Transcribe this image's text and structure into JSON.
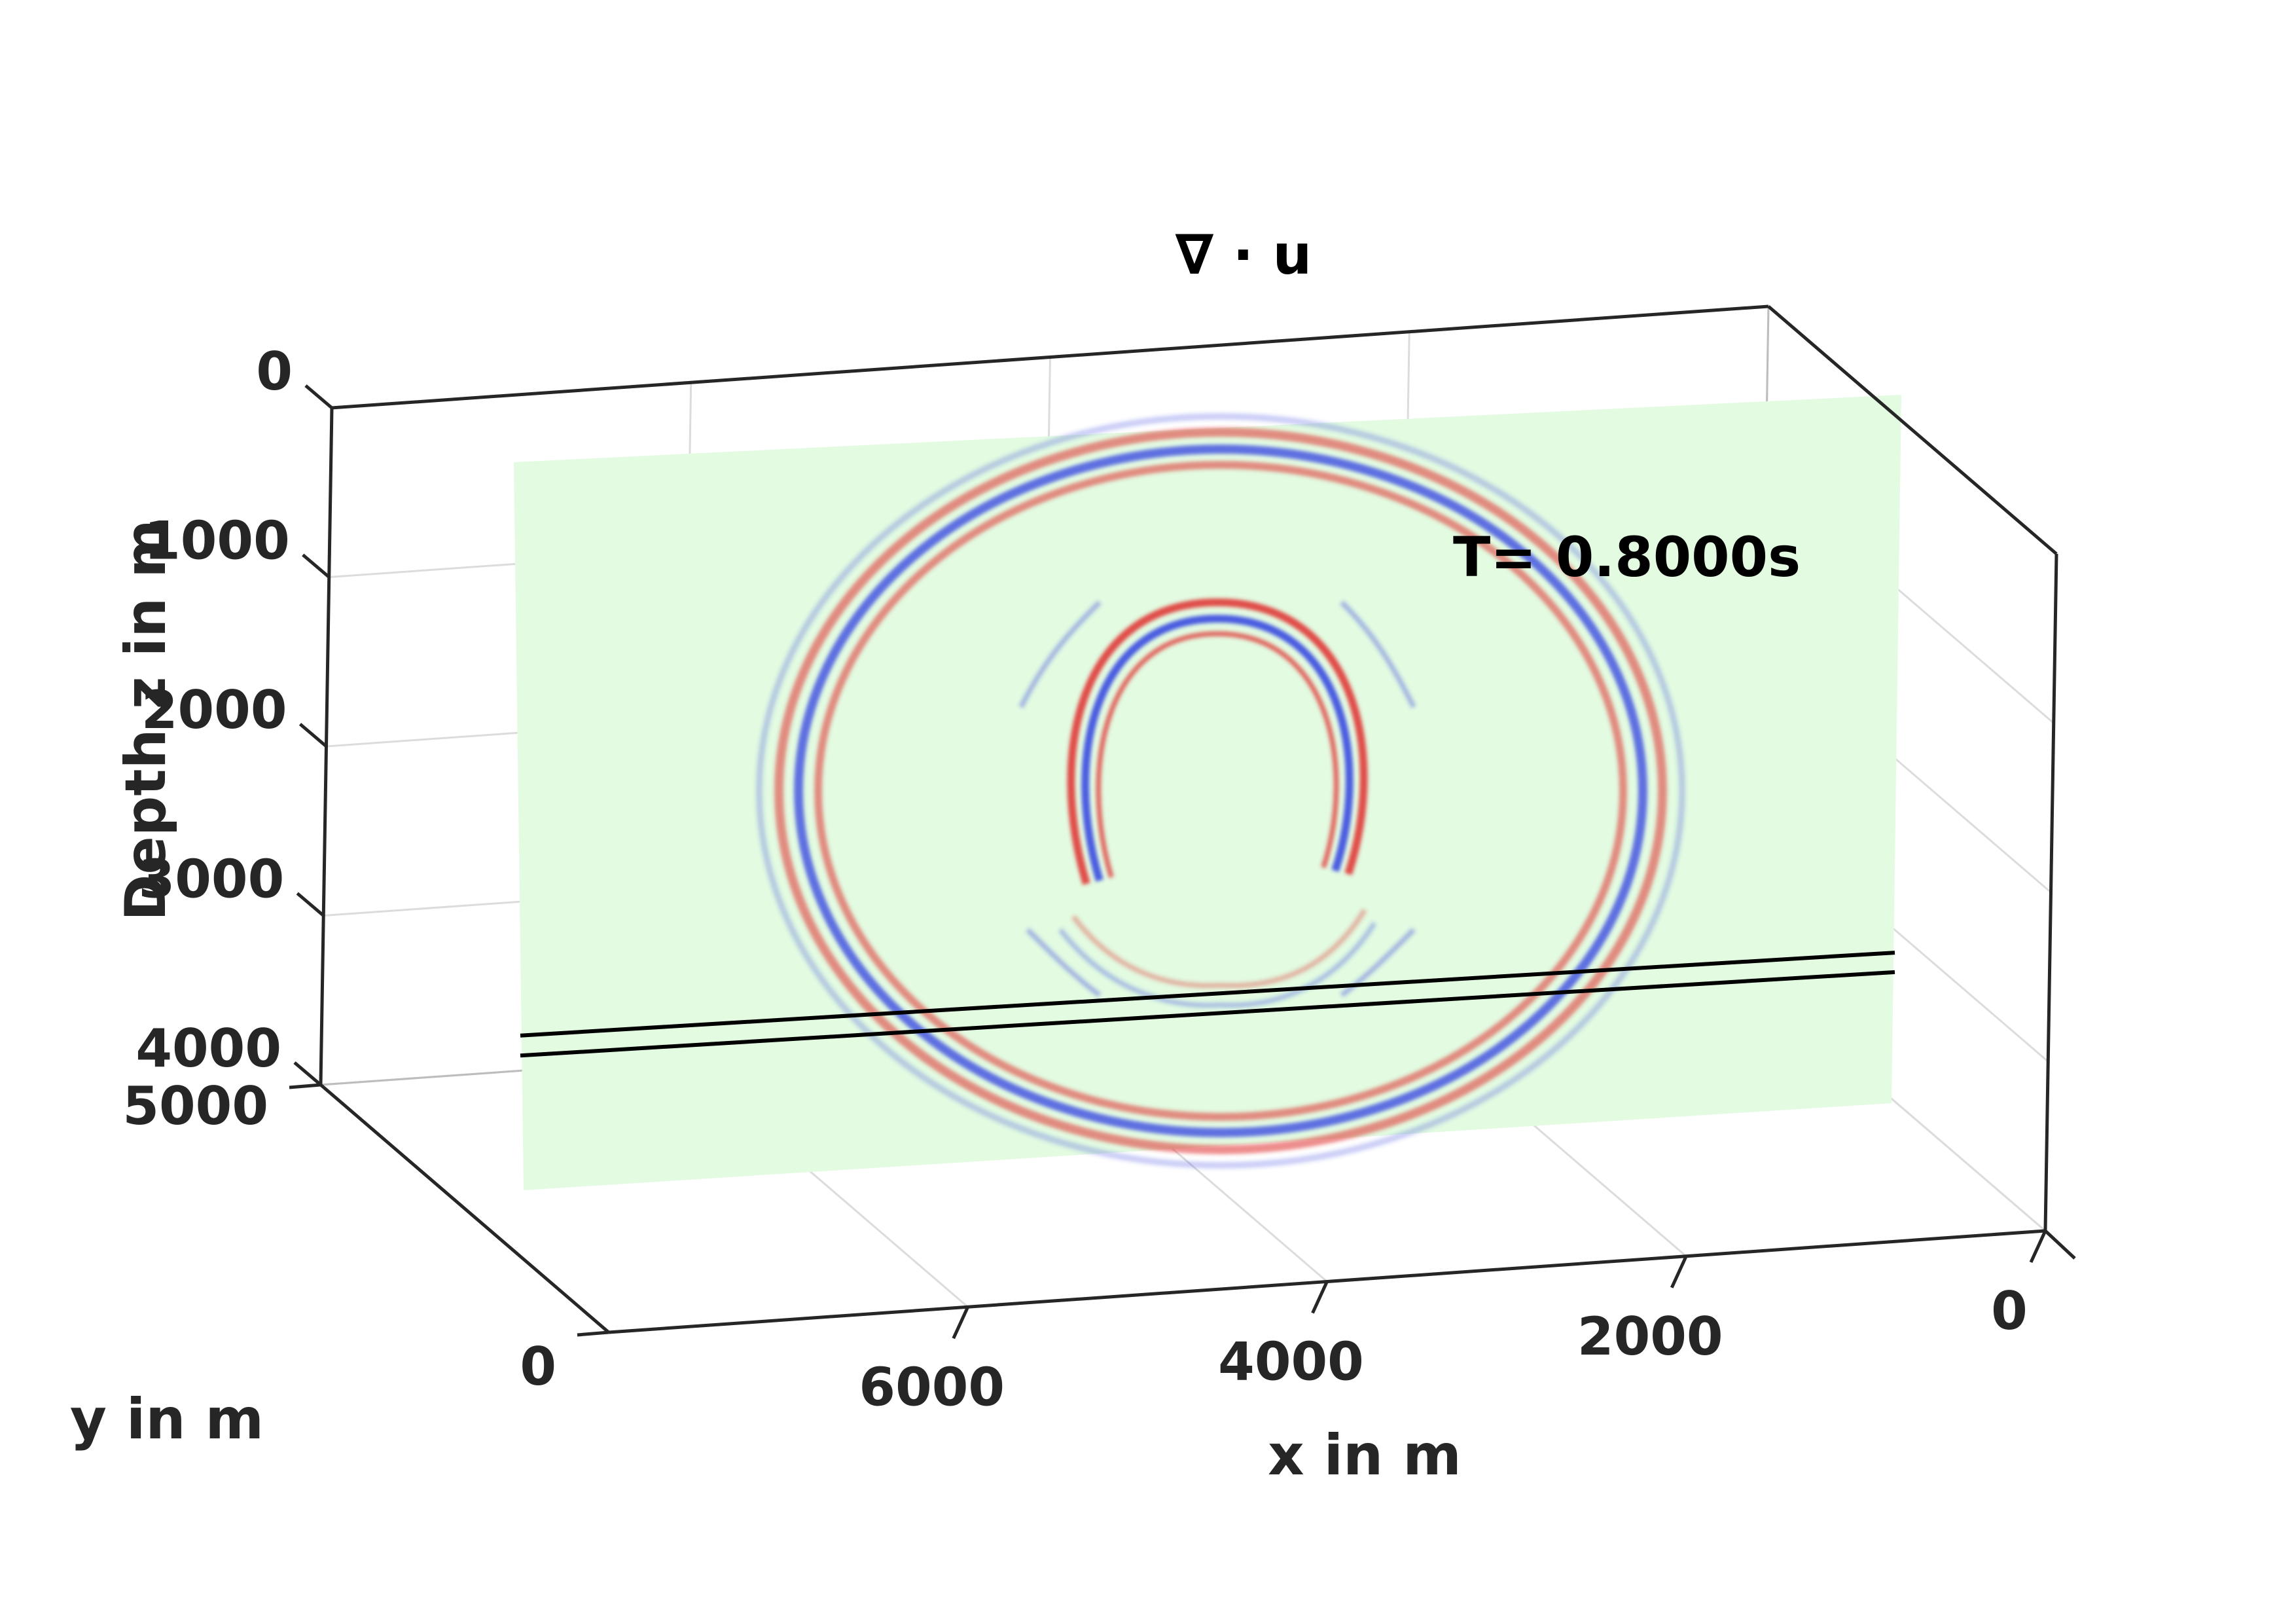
{
  "chart_data": {
    "type": "3d-slice",
    "title": "∇ · u",
    "annotation": "T= 0.8000s",
    "xlabel": "x in m",
    "ylabel": "y in m",
    "zlabel": "Depth z in m",
    "x_ticks": [
      0,
      2000,
      4000,
      6000
    ],
    "y_ticks": [
      0,
      5000
    ],
    "z_ticks": [
      0,
      1000,
      2000,
      3000,
      4000
    ],
    "xlim": [
      0,
      8000
    ],
    "ylim": [
      0,
      5000
    ],
    "zlim": [
      0,
      4000
    ],
    "z_direction": "reverse",
    "grid": true,
    "slice": {
      "color_background": "#e2fbe1",
      "color_positive": "#e03030",
      "color_negative": "#3040e0",
      "interface_depths": [
        3150,
        3260
      ]
    }
  }
}
